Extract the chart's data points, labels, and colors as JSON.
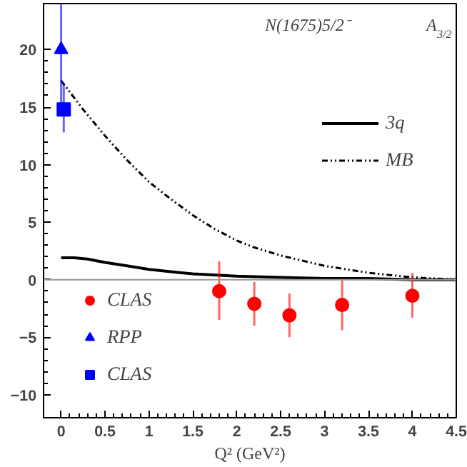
{
  "chart_data": {
    "type": "scatter",
    "title": "N(1675)5/2⁻",
    "subtitle": "A$_{3/2}$",
    "xlabel": "Q² (GeV²)",
    "xlim": [
      -0.2,
      4.5
    ],
    "xticks": [
      0,
      0.5,
      1,
      1.5,
      2,
      2.5,
      3,
      3.5,
      4,
      4.5
    ],
    "ylim": [
      -12,
      24
    ],
    "yticks": [
      -10,
      -5,
      0,
      5,
      10,
      15,
      20
    ],
    "grid": false,
    "legend": "bottom left",
    "ref_lines": [
      {
        "axis": "y",
        "value": 0,
        "color": "#999999"
      }
    ],
    "series": [
      {
        "name": "3q",
        "type": "line",
        "color": "#000000",
        "line_style": "solid",
        "x": [
          0,
          0.15,
          0.3,
          0.5,
          0.75,
          1.0,
          1.25,
          1.5,
          2.0,
          2.5,
          3.0,
          3.5,
          4.0,
          4.5
        ],
        "values": [
          1.9,
          1.9,
          1.8,
          1.5,
          1.2,
          0.9,
          0.7,
          0.5,
          0.3,
          0.2,
          0.1,
          0.1,
          0.0,
          0.0
        ]
      },
      {
        "name": "MB",
        "type": "line",
        "color": "#000000",
        "line_style": "dotted",
        "x": [
          0,
          0.25,
          0.5,
          0.75,
          1.0,
          1.25,
          1.5,
          1.75,
          2.0,
          2.2,
          2.5,
          3.0,
          3.5,
          4.0,
          4.5
        ],
        "values": [
          17.3,
          14.8,
          12.5,
          10.4,
          8.5,
          7.0,
          5.6,
          4.4,
          3.4,
          2.8,
          2.1,
          1.2,
          0.6,
          0.2,
          0.0
        ]
      },
      {
        "name": "CLAS",
        "color": "#ff0000",
        "marker": "circle",
        "x": [
          1.8,
          2.2,
          2.6,
          3.2,
          4.0
        ],
        "values": [
          -1.0,
          -2.1,
          -3.1,
          -2.2,
          -1.4
        ],
        "errors": [
          [
            -3.5,
            1.6
          ],
          [
            -4.0,
            -0.2
          ],
          [
            -5.0,
            -1.2
          ],
          [
            -4.4,
            0.0
          ],
          [
            -3.3,
            0.6
          ]
        ]
      },
      {
        "name": "RPP",
        "color": "#0000ff",
        "marker": "triangle",
        "x": [
          0.0
        ],
        "values": [
          20.0
        ],
        "errors": [
          [
            15.0,
            24.0
          ]
        ]
      },
      {
        "name": "CLAS",
        "color": "#0000ff",
        "marker": "square",
        "x": [
          0.03
        ],
        "values": [
          14.8
        ],
        "errors": [
          [
            12.8,
            17.0
          ]
        ]
      }
    ]
  }
}
